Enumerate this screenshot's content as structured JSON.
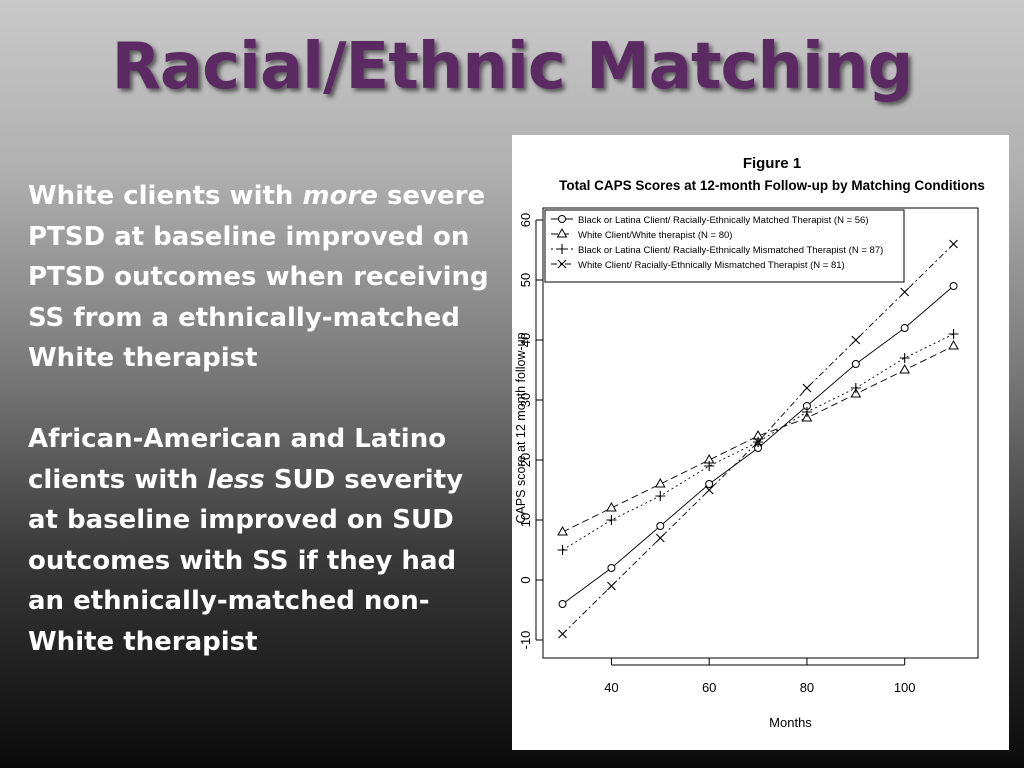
{
  "slide": {
    "title": "Racial/Ethnic Matching",
    "paragraph1": {
      "before": "White clients with ",
      "emph": "more",
      "after": " severe PTSD at baseline improved on PTSD outcomes when receiving SS from a ethnically-matched White therapist"
    },
    "paragraph2": {
      "before": "African-American and Latino clients with ",
      "emph": "less",
      "after": " SUD severity at baseline improved on SUD outcomes with SS if they had an ethnically-matched non-White therapist"
    }
  },
  "chart_data": {
    "type": "line",
    "title": "Figure 1",
    "subtitle": "Total CAPS Scores at 12-month Follow-up by Matching Conditions",
    "xlabel": "Months",
    "ylabel": "CAPS score at 12 month follow-up",
    "xlim": [
      26,
      115
    ],
    "ylim": [
      -13,
      62
    ],
    "x_ticks": [
      40,
      60,
      80,
      100
    ],
    "y_ticks": [
      -10,
      0,
      10,
      20,
      30,
      40,
      50,
      60
    ],
    "grid": false,
    "legend_position": "top-left",
    "x": [
      30,
      40,
      50,
      60,
      70,
      80,
      90,
      100,
      110
    ],
    "series": [
      {
        "name": "Black or Latina Client/ Racially-Ethnically Matched Therapist (N = 56)",
        "marker": "o",
        "dash": "",
        "values": [
          -4,
          2,
          9,
          16,
          22,
          29,
          36,
          42,
          49
        ]
      },
      {
        "name": "White Client/White therapist (N = 80)",
        "marker": "triangle",
        "dash": "7,4",
        "values": [
          8,
          12,
          16,
          20,
          24,
          27,
          31,
          35,
          39
        ]
      },
      {
        "name": "Black or  Latina Client/ Racially-Ethnically Mismatched Therapist (N = 87)",
        "marker": "+",
        "dash": "2,3",
        "values": [
          5,
          10,
          14,
          19,
          23,
          28,
          32,
          37,
          41
        ]
      },
      {
        "name": "White Client/ Racially-Ethnically Mismatched Therapist (N = 81)",
        "marker": "x",
        "dash": "6,3,2,3",
        "values": [
          -9,
          -1,
          7,
          15,
          23,
          32,
          40,
          48,
          56
        ]
      }
    ]
  }
}
